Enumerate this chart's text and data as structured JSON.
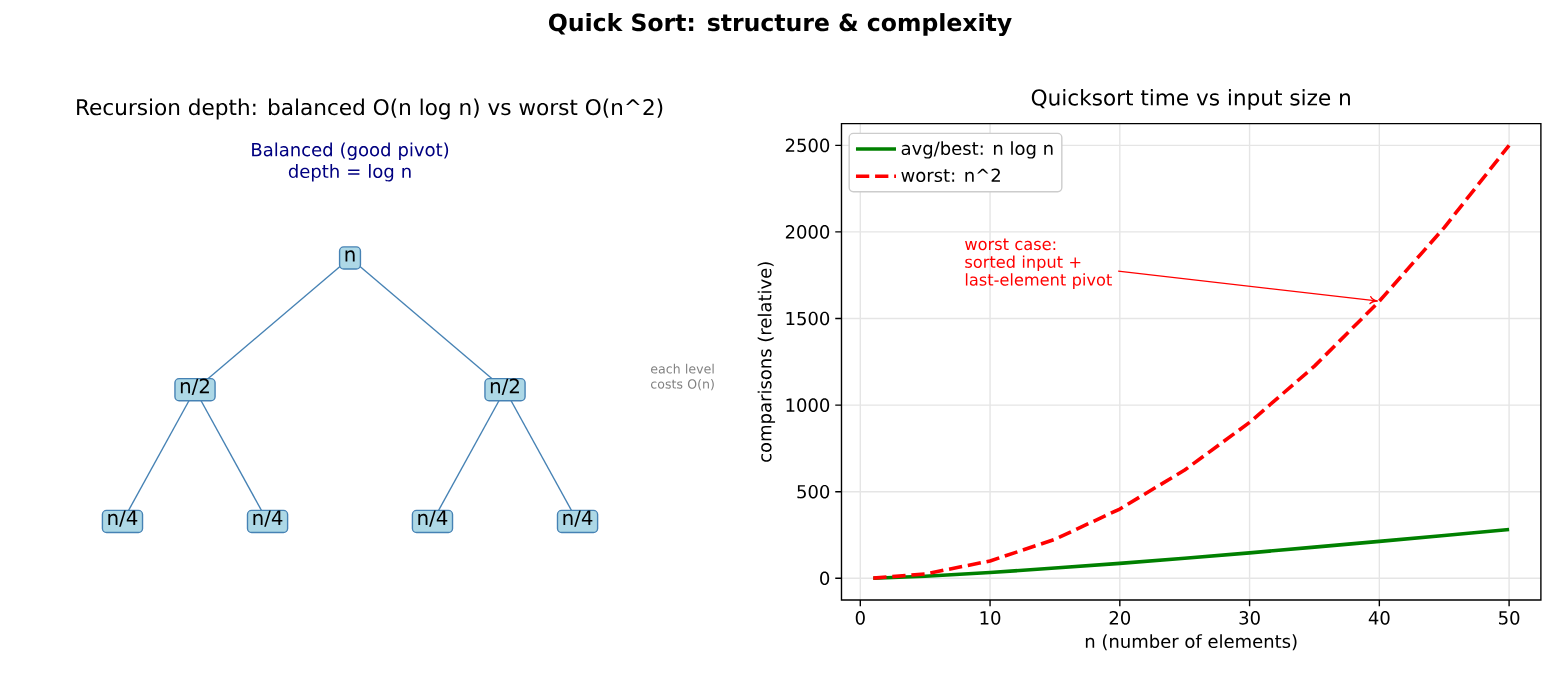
{
  "chart_data": [
    {
      "type": "other",
      "title": "Quick Sort: structure & complexity"
    },
    {
      "type": "other",
      "title": "Recursion depth: balanced O(n log n) vs worst O(n^2)",
      "categories": [
        "n",
        "n/2",
        "n/2",
        "n/4",
        "n/4",
        "n/4",
        "n/4"
      ],
      "color": "#4682b4",
      "annotations": [
        "Balanced (good pivot)\ndepth = log n",
        "each level\ncosts O(n)"
      ]
    },
    {
      "type": "line",
      "title": "Quicksort time vs input size n",
      "xlabel": "n (number of elements)",
      "ylabel": "comparisons (relative)",
      "x": [
        1,
        5,
        10,
        15,
        20,
        25,
        30,
        35,
        40,
        45,
        50
      ],
      "series": [
        {
          "name": "avg/best: n log n",
          "color": "#008000",
          "line_style": "solid",
          "values": [
            0,
            12,
            33,
            59,
            86,
            116,
            147,
            180,
            213,
            247,
            282
          ]
        },
        {
          "name": "worst: n^2",
          "color": "#ff0000",
          "line_style": "dashed",
          "values": [
            1,
            25,
            100,
            225,
            400,
            625,
            900,
            1225,
            1600,
            2025,
            2500
          ]
        }
      ],
      "xlim": [
        -1.45,
        52.45
      ],
      "ylim": [
        -125,
        2625
      ],
      "xticks": [
        0,
        10,
        20,
        30,
        40,
        50
      ],
      "yticks": [
        0,
        500,
        1000,
        1500,
        2000,
        2500
      ],
      "grid": true,
      "legend": "top left",
      "annotations": [
        {
          "text": "worst case:\nsorted input +\nlast-element pivot",
          "x": 40,
          "y": 1600
        }
      ]
    }
  ]
}
